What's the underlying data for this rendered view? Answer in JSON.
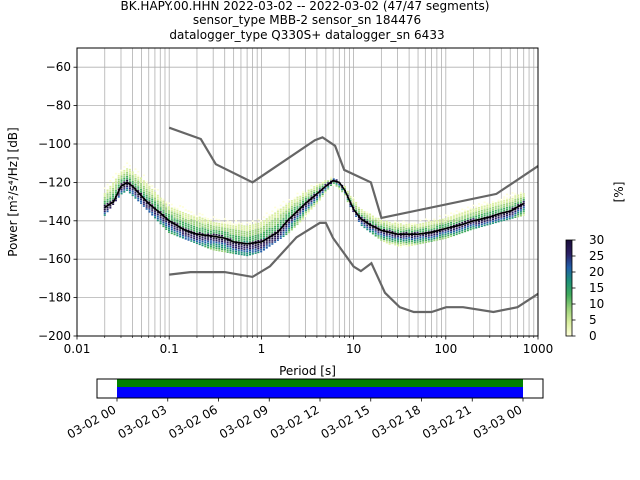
{
  "title_lines": [
    "BK.HAPY.00.HHN   2022-03-02 -- 2022-03-02  (47/47 segments)",
    "sensor_type MBB-2 sensor_sn 184476",
    "datalogger_type Q330S+ datalogger_sn 6433"
  ],
  "chart_data": {
    "type": "heatmap",
    "xlabel": "Period [s]",
    "ylabel": "Power [m²/s⁴/Hz] [dB]",
    "xscale": "log",
    "xlim": [
      0.01,
      1000
    ],
    "ylim": [
      -200,
      -50
    ],
    "x_ticks": [
      0.01,
      0.1,
      1,
      10,
      100,
      1000
    ],
    "x_tick_labels": [
      "0.01",
      "0.1",
      "1",
      "10",
      "100",
      "1000"
    ],
    "y_ticks": [
      -200,
      -180,
      -160,
      -140,
      -120,
      -100,
      -80,
      -60
    ],
    "y_tick_labels": [
      "−200",
      "−180",
      "−160",
      "−140",
      "−120",
      "−100",
      "−80",
      "−60"
    ],
    "grid": true,
    "colorbar": {
      "label": "[%]",
      "range": [
        0,
        30
      ],
      "ticks": [
        0,
        5,
        10,
        15,
        20,
        25,
        30
      ],
      "tick_labels": [
        "0",
        "5",
        "10",
        "15",
        "20",
        "25",
        "30"
      ],
      "colormap": [
        "#ffffd9",
        "#d9ee9f",
        "#9ad17a",
        "#41ab5d",
        "#1d9178",
        "#225ea8",
        "#2c1f64",
        "#1a0e3a"
      ]
    },
    "noise_model_high": {
      "x": [
        0.1,
        0.22,
        0.32,
        0.8,
        3.8,
        4.6,
        6.3,
        7.9,
        15.4,
        20,
        354,
        1000
      ],
      "y": [
        -91.5,
        -97.4,
        -110.5,
        -120,
        -98,
        -96.5,
        -101,
        -113.5,
        -120,
        -138.5,
        -126,
        -111.5
      ]
    },
    "noise_model_low": {
      "x": [
        0.1,
        0.17,
        0.4,
        0.8,
        1.24,
        2.4,
        4.3,
        5,
        6,
        10,
        12,
        15.6,
        21.9,
        31.6,
        45,
        70,
        101,
        154,
        328,
        600,
        1000
      ],
      "y": [
        -168,
        -166.7,
        -166.7,
        -169.2,
        -163.7,
        -148.6,
        -141.1,
        -141.1,
        -149,
        -163.8,
        -166.2,
        -162.1,
        -177.5,
        -185,
        -187.5,
        -187.5,
        -185,
        -185,
        -187.5,
        -185,
        -178
      ]
    },
    "mean_curve": {
      "x": [
        0.02,
        0.025,
        0.03,
        0.035,
        0.04,
        0.05,
        0.06,
        0.08,
        0.1,
        0.15,
        0.2,
        0.3,
        0.4,
        0.5,
        0.7,
        1.0,
        1.5,
        2,
        3,
        4,
        5,
        6,
        7,
        8,
        10,
        12,
        15,
        20,
        30,
        50,
        70,
        100,
        150,
        200,
        300,
        400,
        500,
        700
      ],
      "y": [
        -133,
        -130,
        -122,
        -120,
        -122,
        -127,
        -131,
        -136,
        -140,
        -145,
        -147,
        -148,
        -149,
        -151,
        -152,
        -151,
        -146,
        -139,
        -131,
        -126,
        -122,
        -119,
        -120,
        -124,
        -134,
        -139,
        -142,
        -145,
        -147,
        -147,
        -146,
        -144,
        -142,
        -140,
        -138,
        -136,
        -135,
        -131
      ]
    },
    "psd_band": {
      "x": [
        0.02,
        0.03,
        0.035,
        0.05,
        0.1,
        0.3,
        0.7,
        1.0,
        2,
        4,
        6,
        8,
        12,
        20,
        30,
        50,
        100,
        200,
        400,
        700
      ],
      "upper": [
        -123,
        -112,
        -110,
        -115,
        -130,
        -138,
        -140,
        -137,
        -128,
        -120,
        -117,
        -122,
        -132,
        -138,
        -140,
        -140,
        -137,
        -132,
        -127,
        -124
      ],
      "lower": [
        -137,
        -126,
        -124,
        -131,
        -146,
        -155,
        -158,
        -156,
        -146,
        -132,
        -121,
        -127,
        -142,
        -150,
        -154,
        -152,
        -149,
        -144,
        -140,
        -137
      ]
    },
    "time_axis": {
      "tick_labels": [
        "03-02 00",
        "03-02 03",
        "03-02 06",
        "03-02 09",
        "03-02 12",
        "03-02 15",
        "03-02 18",
        "03-02 21",
        "03-03 00"
      ],
      "data_color": "#008000",
      "gap_color": "#0000ff"
    }
  }
}
